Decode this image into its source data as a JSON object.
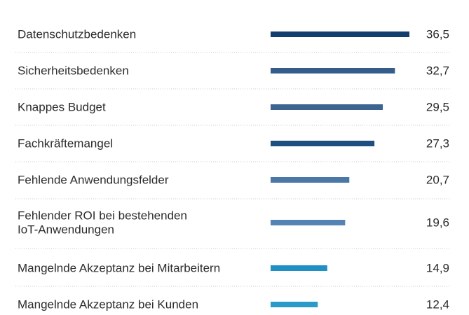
{
  "chart_data": {
    "type": "bar",
    "orientation": "horizontal",
    "title": "",
    "xlabel": "",
    "ylabel": "",
    "xlim": [
      0,
      36.5
    ],
    "grid": false,
    "legend": "none",
    "categories": [
      [
        "Datenschutzbedenken"
      ],
      [
        "Sicherheitsbedenken"
      ],
      [
        "Knappes Budget"
      ],
      [
        "Fachkräftemangel"
      ],
      [
        "Fehlende Anwendungsfelder"
      ],
      [
        "Fehlender ROI bei bestehenden",
        "IoT-Anwendungen"
      ],
      [
        "Mangelnde Akzeptanz bei Mitarbeitern"
      ],
      [
        "Mangelnde Akzeptanz bei Kunden"
      ]
    ],
    "values": [
      36.5,
      32.7,
      29.5,
      27.3,
      20.7,
      19.6,
      14.9,
      12.4
    ],
    "value_labels": [
      "36,5",
      "32,7",
      "29,5",
      "27,3",
      "20,7",
      "19,6",
      "14,9",
      "12,4"
    ],
    "colors": [
      "#123f6e",
      "#345d8c",
      "#3b6491",
      "#1f4f80",
      "#4a77a8",
      "#5583b4",
      "#1f8fc4",
      "#2a9bc8"
    ]
  }
}
